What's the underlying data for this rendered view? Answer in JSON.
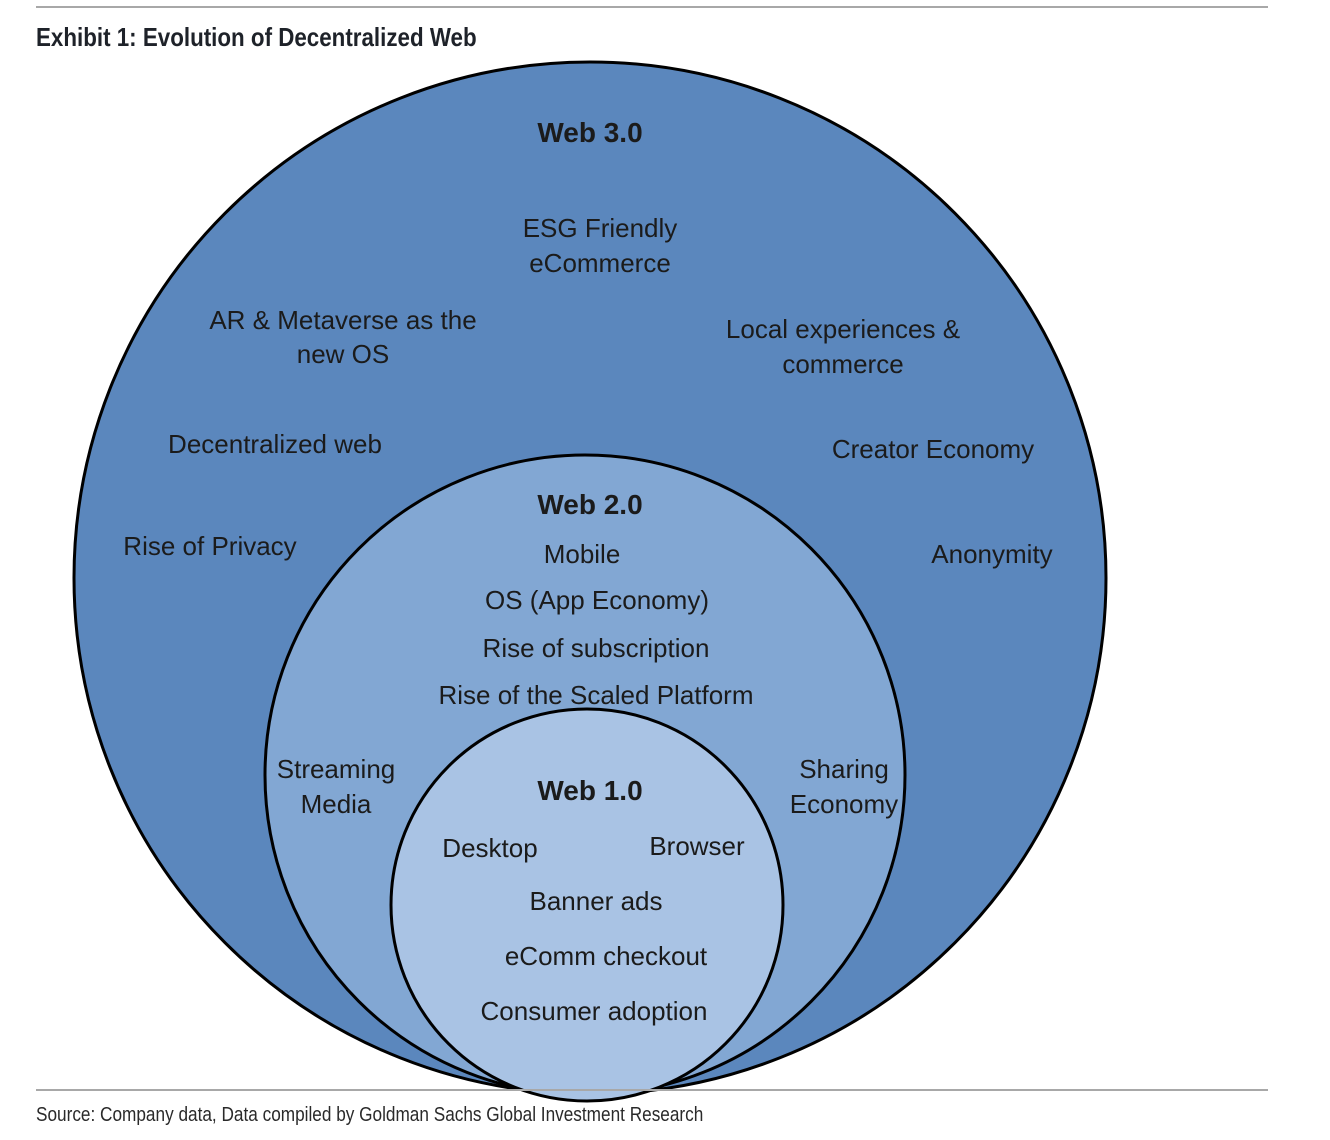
{
  "title": "Exhibit 1: Evolution of Decentralized Web",
  "source": "Source: Company data, Data compiled by Goldman Sachs Global Investment Research",
  "colors": {
    "web3_fill": "#5b87bd",
    "web2_fill": "#82a7d3",
    "web1_fill": "#a9c3e4",
    "outline": "#000000"
  },
  "web3": {
    "heading": "Web 3.0",
    "esg_line1": "ESG Friendly",
    "esg_line2": "eCommerce",
    "ar_line1": "AR & Metaverse as the",
    "ar_line2": "new OS",
    "local_line1": "Local experiences &",
    "local_line2": "commerce",
    "decentralized": "Decentralized web",
    "creator": "Creator Economy",
    "privacy": "Rise of Privacy",
    "anonymity": "Anonymity"
  },
  "web2": {
    "heading": "Web 2.0",
    "mobile": "Mobile",
    "os": "OS (App Economy)",
    "subscription": "Rise of subscription",
    "platform": "Rise of the Scaled Platform",
    "streaming_line1": "Streaming",
    "streaming_line2": "Media",
    "sharing_line1": "Sharing",
    "sharing_line2": "Economy"
  },
  "web1": {
    "heading": "Web 1.0",
    "desktop": "Desktop",
    "browser": "Browser",
    "banner": "Banner ads",
    "checkout": "eComm checkout",
    "adoption": "Consumer adoption"
  }
}
